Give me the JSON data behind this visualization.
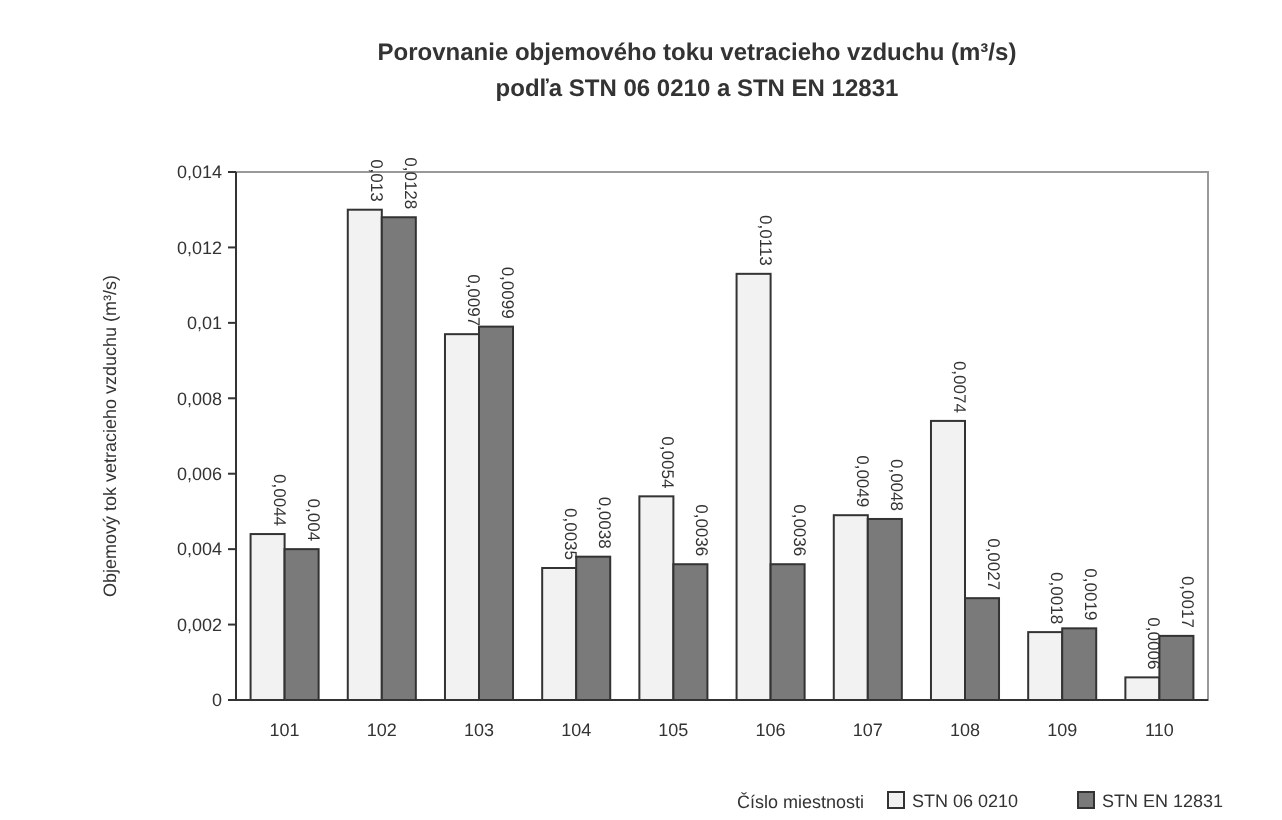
{
  "chart_data": {
    "type": "bar",
    "title": "Porovnanie objemového toku vetracieho vzduchu  (m³/s)",
    "subtitle": "podľa STN 06 0210 a STN EN 12831",
    "xlabel": "Číslo miestnosti",
    "ylabel": "Objemový tok vetracieho vzduchu (m³/s)",
    "categories": [
      "101",
      "102",
      "103",
      "104",
      "105",
      "106",
      "107",
      "108",
      "109",
      "110"
    ],
    "series": [
      {
        "name": "STN 06 0210",
        "color": "#f2f2f2",
        "values": [
          0.0044,
          0.013,
          0.0097,
          0.0035,
          0.0054,
          0.0113,
          0.0049,
          0.0074,
          0.0018,
          0.0006
        ],
        "value_labels": [
          "0,0044",
          "0,013",
          "0,0097",
          "0,0035",
          "0,0054",
          "0,0113",
          "0,0049",
          "0,0074",
          "0,0018",
          "0,0006"
        ]
      },
      {
        "name": "STN EN 12831",
        "color": "#7a7a7a",
        "values": [
          0.004,
          0.0128,
          0.0099,
          0.0038,
          0.0036,
          0.0036,
          0.0048,
          0.0027,
          0.0019,
          0.0017
        ],
        "value_labels": [
          "0,004",
          "0,0128",
          "0,0099",
          "0,0038",
          "0,0036",
          "0,0036",
          "0,0048",
          "0,0027",
          "0,0019",
          "0,0017"
        ]
      }
    ],
    "ylim": [
      0,
      0.014
    ],
    "yticks": [
      0,
      {
        "value": 0.002,
        "label": "0,002"
      },
      {
        "value": 0.004,
        "label": "0,004"
      },
      {
        "value": 0.006,
        "label": "0,006"
      },
      {
        "value": 0.008,
        "label": "0,008"
      },
      {
        "value": 0.01,
        "label": "0,01"
      },
      {
        "value": 0.012,
        "label": "0,012"
      },
      {
        "value": 0.014,
        "label": "0,014"
      }
    ],
    "grid": false,
    "legend": "bottom right"
  }
}
